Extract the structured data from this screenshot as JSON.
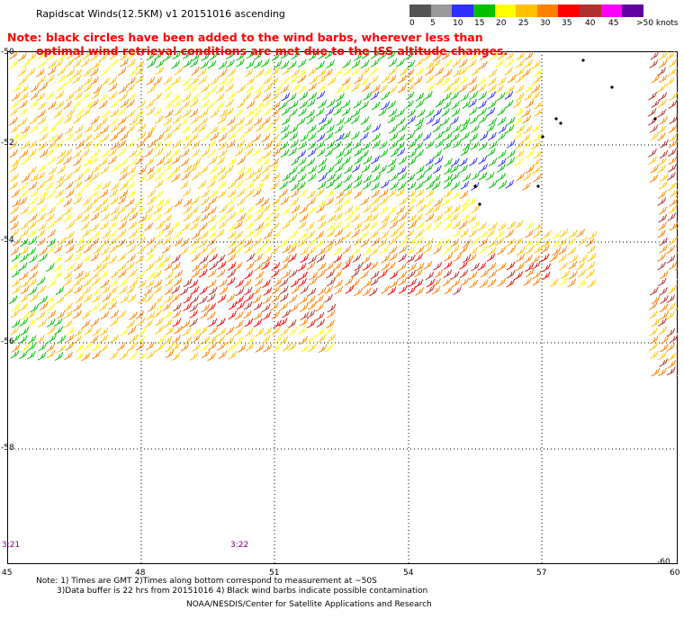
{
  "title": "Rapidscat Winds(12.5KM) v1 20151016 ascending",
  "note_line1": "Note: black circles have been added to the wind barbs, wherever less than",
  "note_line2": "optimal wind retrieval conditions are met due to the ISS altitude changes.",
  "colorbar": {
    "colors": [
      "#555555",
      "#9a9a9a",
      "#2f2fff",
      "#00c000",
      "#ffff00",
      "#ffc000",
      "#ff8000",
      "#ff0000",
      "#b03030",
      "#ff00ff",
      "#6000a0"
    ],
    "labels": [
      "0",
      "5",
      "10",
      "15",
      "20",
      "25",
      "30",
      "35",
      "40",
      "45",
      ">50 knots"
    ]
  },
  "lat_labels": [
    "-50",
    "-52",
    "-54",
    "-56",
    "-58",
    "-60"
  ],
  "lon_labels": [
    "45",
    "48",
    "51",
    "54",
    "57",
    "60"
  ],
  "time_labels": [
    "3:21",
    "3:22"
  ],
  "footer_line1": "Note: 1) Times are GMT 2)Times along bottom correspond to measurement at ~50S",
  "footer_line2": "3)Data buffer is 22 hrs from 20151016 4) Black wind barbs indicate possible contamination",
  "credit": "NOAA/NESDIS/Center for Satellite Applications and Research",
  "wind_swath": [
    {
      "region": "north-west",
      "speed_knots_range": [
        20,
        35
      ]
    },
    {
      "region": "central-north",
      "speed_knots_range": [
        15,
        25
      ]
    },
    {
      "region": "south-central",
      "speed_knots_range": [
        30,
        45
      ]
    },
    {
      "region": "east",
      "speed_knots_range": [
        30,
        40
      ]
    }
  ]
}
